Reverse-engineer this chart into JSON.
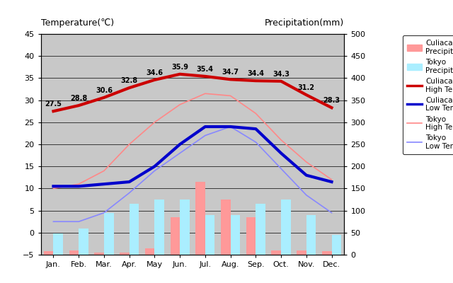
{
  "months": [
    "Jan.",
    "Feb.",
    "Mar.",
    "Apr.",
    "May",
    "Jun.",
    "Jul.",
    "Aug.",
    "Sep.",
    "Oct.",
    "Nov.",
    "Dec."
  ],
  "month_positions": [
    0,
    1,
    2,
    3,
    4,
    5,
    6,
    7,
    8,
    9,
    10,
    11
  ],
  "culiacan_high": [
    27.5,
    28.8,
    30.6,
    32.8,
    34.6,
    35.9,
    35.4,
    34.7,
    34.4,
    34.3,
    31.2,
    28.3
  ],
  "culiacan_low": [
    10.5,
    10.5,
    11.0,
    11.5,
    15.0,
    20.0,
    24.0,
    24.0,
    23.5,
    18.0,
    13.0,
    11.5
  ],
  "tokyo_high": [
    10.0,
    11.0,
    14.0,
    20.0,
    25.0,
    29.0,
    31.5,
    31.0,
    27.0,
    21.0,
    16.0,
    12.0
  ],
  "tokyo_low": [
    2.5,
    2.5,
    4.5,
    9.0,
    14.0,
    18.0,
    22.0,
    24.0,
    20.5,
    14.5,
    8.5,
    4.5
  ],
  "culiacan_precip": [
    8,
    10,
    5,
    5,
    15,
    85,
    165,
    125,
    85,
    10,
    10,
    8
  ],
  "tokyo_precip": [
    48,
    60,
    95,
    115,
    125,
    125,
    90,
    90,
    115,
    125,
    90,
    45
  ],
  "culiacan_high_color": "#CC0000",
  "culiacan_low_color": "#0000CC",
  "tokyo_high_color": "#FF8888",
  "tokyo_low_color": "#8888FF",
  "culiacan_precip_color": "#FF9999",
  "tokyo_precip_color": "#AAEEFF",
  "temp_ylim": [
    -5,
    45
  ],
  "precip_ylim": [
    0,
    500
  ],
  "temp_yticks": [
    -5,
    0,
    5,
    10,
    15,
    20,
    25,
    30,
    35,
    40,
    45
  ],
  "precip_yticks": [
    0,
    50,
    100,
    150,
    200,
    250,
    300,
    350,
    400,
    450,
    500
  ],
  "title_left": "Temperature(℃)",
  "title_right": "Precipitation(mm)",
  "plot_bg_color": "#C8C8C8",
  "high_labels": [
    "27.5",
    "28.8",
    "30.6",
    "32.8",
    "34.6",
    "35.9",
    "35.4",
    "34.7",
    "34.4",
    "34.3",
    "31.2",
    "28.3"
  ]
}
